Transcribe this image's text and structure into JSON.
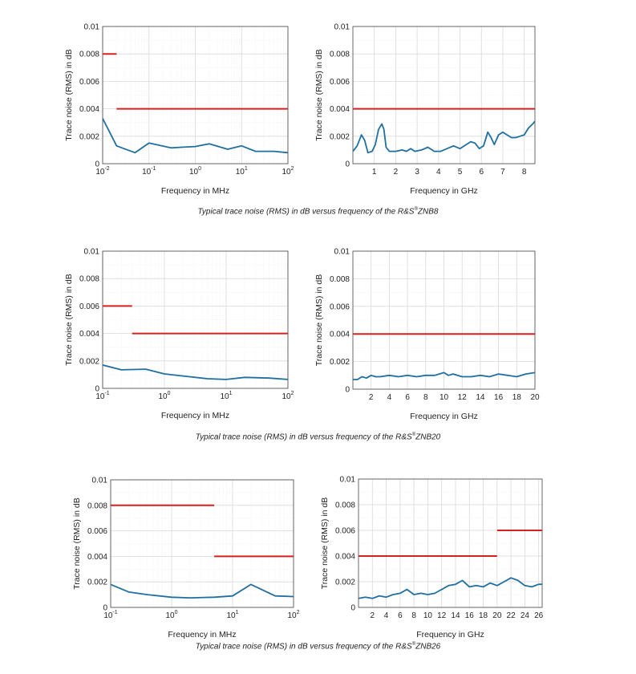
{
  "colors": {
    "limit": "#d62020",
    "measured": "#1f6fa0",
    "grid": "#d9d9d9",
    "axis": "#444444"
  },
  "captions": [
    {
      "prefix": "Typical trace noise (RMS) in dB versus frequency of the R&S",
      "mark": "®",
      "model": "ZNB8"
    },
    {
      "prefix": "Typical trace noise (RMS) in dB versus frequency of the R&S",
      "mark": "®",
      "model": "ZNB20"
    },
    {
      "prefix": "Typical trace noise (RMS) in dB versus frequency of the R&S",
      "mark": "®",
      "model": "ZNB26"
    }
  ],
  "chart_data": [
    {
      "id": "znb8-mhz",
      "type": "line",
      "xscale": "log",
      "xlabel": "Frequency in MHz",
      "ylabel": "Trace noise (RMS) in dB",
      "xlim": [
        0.01,
        100
      ],
      "ylim": [
        0,
        0.01
      ],
      "xticks": [
        0.01,
        0.1,
        1,
        10,
        100
      ],
      "xtick_labels": [
        {
          "base": "10",
          "exp": "-2"
        },
        {
          "base": "10",
          "exp": "-1"
        },
        {
          "base": "10",
          "exp": "0"
        },
        {
          "base": "10",
          "exp": "1"
        },
        {
          "base": "10",
          "exp": "2"
        }
      ],
      "yticks": [
        0,
        0.002,
        0.004,
        0.006,
        0.008,
        0.01
      ],
      "ytick_labels": [
        "0",
        "0.002",
        "0.004",
        "0.006",
        "0.008",
        "0.01"
      ],
      "series": [
        {
          "name": "limit",
          "color": "limit",
          "segments": [
            [
              [
                0.01,
                0.008
              ],
              [
                0.02,
                0.008
              ]
            ],
            [
              [
                0.02,
                0.004
              ],
              [
                100,
                0.004
              ]
            ]
          ]
        },
        {
          "name": "measured",
          "color": "measured",
          "segments": [
            [
              [
                0.01,
                0.0033
              ],
              [
                0.02,
                0.0013
              ],
              [
                0.05,
                0.0008
              ],
              [
                0.1,
                0.0015
              ],
              [
                0.3,
                0.00115
              ],
              [
                0.5,
                0.0012
              ],
              [
                1,
                0.00125
              ],
              [
                2,
                0.00145
              ],
              [
                5,
                0.00105
              ],
              [
                10,
                0.0013
              ],
              [
                20,
                0.0009
              ],
              [
                50,
                0.0009
              ],
              [
                100,
                0.0008
              ]
            ]
          ]
        }
      ]
    },
    {
      "id": "znb8-ghz",
      "type": "line",
      "xscale": "linear",
      "xlabel": "Frequency in GHz",
      "ylabel": "Trace noise (RMS) in dB",
      "xlim": [
        0,
        8.5
      ],
      "ylim": [
        0,
        0.01
      ],
      "xticks": [
        1,
        2,
        3,
        4,
        5,
        6,
        7,
        8
      ],
      "xtick_labels": [
        "1",
        "2",
        "3",
        "4",
        "5",
        "6",
        "7",
        "8"
      ],
      "yticks": [
        0,
        0.002,
        0.004,
        0.006,
        0.008,
        0.01
      ],
      "ytick_labels": [
        "0",
        "0.002",
        "0.004",
        "0.006",
        "0.008",
        "0.01"
      ],
      "series": [
        {
          "name": "limit",
          "color": "limit",
          "segments": [
            [
              [
                0,
                0.004
              ],
              [
                8.5,
                0.004
              ]
            ]
          ]
        },
        {
          "name": "measured",
          "color": "measured",
          "segments": [
            [
              [
                0,
                0.0009
              ],
              [
                0.2,
                0.0013
              ],
              [
                0.4,
                0.0021
              ],
              [
                0.55,
                0.0017
              ],
              [
                0.7,
                0.0008
              ],
              [
                0.9,
                0.0009
              ],
              [
                1.05,
                0.0014
              ],
              [
                1.2,
                0.0025
              ],
              [
                1.35,
                0.0029
              ],
              [
                1.45,
                0.0025
              ],
              [
                1.55,
                0.0012
              ],
              [
                1.7,
                0.0009
              ],
              [
                2.0,
                0.0009
              ],
              [
                2.3,
                0.001
              ],
              [
                2.5,
                0.0009
              ],
              [
                2.7,
                0.0011
              ],
              [
                2.9,
                0.0009
              ],
              [
                3.2,
                0.001
              ],
              [
                3.5,
                0.0012
              ],
              [
                3.8,
                0.0009
              ],
              [
                4.1,
                0.0009
              ],
              [
                4.4,
                0.0011
              ],
              [
                4.7,
                0.0013
              ],
              [
                5.0,
                0.0011
              ],
              [
                5.3,
                0.0014
              ],
              [
                5.5,
                0.0016
              ],
              [
                5.7,
                0.0015
              ],
              [
                5.9,
                0.0011
              ],
              [
                6.1,
                0.0013
              ],
              [
                6.3,
                0.0023
              ],
              [
                6.45,
                0.0019
              ],
              [
                6.6,
                0.0014
              ],
              [
                6.8,
                0.0021
              ],
              [
                7.0,
                0.0023
              ],
              [
                7.2,
                0.0021
              ],
              [
                7.4,
                0.0019
              ],
              [
                7.6,
                0.0019
              ],
              [
                7.8,
                0.002
              ],
              [
                8.0,
                0.0021
              ],
              [
                8.2,
                0.0026
              ],
              [
                8.4,
                0.0029
              ],
              [
                8.5,
                0.0031
              ]
            ]
          ]
        }
      ]
    },
    {
      "id": "znb20-mhz",
      "type": "line",
      "xscale": "log",
      "xlabel": "Frequency in MHz",
      "ylabel": "Trace noise (RMS) in dB",
      "xlim": [
        0.1,
        100
      ],
      "ylim": [
        0,
        0.01
      ],
      "xticks": [
        0.1,
        1,
        10,
        100
      ],
      "xtick_labels": [
        {
          "base": "10",
          "exp": "-1"
        },
        {
          "base": "10",
          "exp": "0"
        },
        {
          "base": "10",
          "exp": "1"
        },
        {
          "base": "10",
          "exp": "2"
        }
      ],
      "yticks": [
        0,
        0.002,
        0.004,
        0.006,
        0.008,
        0.01
      ],
      "ytick_labels": [
        "0",
        "0.002",
        "0.004",
        "0.006",
        "0.008",
        "0.01"
      ],
      "series": [
        {
          "name": "limit",
          "color": "limit",
          "segments": [
            [
              [
                0.1,
                0.006
              ],
              [
                0.3,
                0.006
              ]
            ],
            [
              [
                0.3,
                0.004
              ],
              [
                100,
                0.004
              ]
            ]
          ]
        },
        {
          "name": "measured",
          "color": "measured",
          "segments": [
            [
              [
                0.1,
                0.0017
              ],
              [
                0.2,
                0.00135
              ],
              [
                0.5,
                0.0014
              ],
              [
                1,
                0.00105
              ],
              [
                2,
                0.0009
              ],
              [
                5,
                0.0007
              ],
              [
                10,
                0.00065
              ],
              [
                20,
                0.0008
              ],
              [
                50,
                0.00075
              ],
              [
                100,
                0.00065
              ]
            ]
          ]
        }
      ]
    },
    {
      "id": "znb20-ghz",
      "type": "line",
      "xscale": "linear",
      "xlabel": "Frequency in GHz",
      "ylabel": "Trace noise (RMS) in dB",
      "xlim": [
        0,
        20
      ],
      "ylim": [
        0,
        0.01
      ],
      "xticks": [
        2,
        4,
        6,
        8,
        10,
        12,
        14,
        16,
        18,
        20
      ],
      "xtick_labels": [
        "2",
        "4",
        "6",
        "8",
        "10",
        "12",
        "14",
        "16",
        "18",
        "20"
      ],
      "yticks": [
        0,
        0.002,
        0.004,
        0.006,
        0.008,
        0.01
      ],
      "ytick_labels": [
        "0",
        "0.002",
        "0.004",
        "0.006",
        "0.008",
        "0.01"
      ],
      "series": [
        {
          "name": "limit",
          "color": "limit",
          "segments": [
            [
              [
                0,
                0.004
              ],
              [
                20,
                0.004
              ]
            ]
          ]
        },
        {
          "name": "measured",
          "color": "measured",
          "segments": [
            [
              [
                0,
                0.0007
              ],
              [
                0.5,
                0.0007
              ],
              [
                1,
                0.0009
              ],
              [
                1.5,
                0.0008
              ],
              [
                2,
                0.001
              ],
              [
                2.5,
                0.0009
              ],
              [
                3,
                0.0009
              ],
              [
                4,
                0.001
              ],
              [
                5,
                0.0009
              ],
              [
                6,
                0.001
              ],
              [
                7,
                0.0009
              ],
              [
                8,
                0.001
              ],
              [
                9,
                0.001
              ],
              [
                10,
                0.0012
              ],
              [
                10.5,
                0.001
              ],
              [
                11,
                0.0011
              ],
              [
                12,
                0.0009
              ],
              [
                13,
                0.0009
              ],
              [
                14,
                0.001
              ],
              [
                15,
                0.0009
              ],
              [
                16,
                0.0011
              ],
              [
                17,
                0.001
              ],
              [
                18,
                0.0009
              ],
              [
                19,
                0.0011
              ],
              [
                20,
                0.0012
              ]
            ]
          ]
        }
      ]
    },
    {
      "id": "znb26-mhz",
      "type": "line",
      "xscale": "log",
      "xlabel": "Frequency in MHz",
      "ylabel": "Trace noise (RMS) in dB",
      "xlim": [
        0.1,
        100
      ],
      "ylim": [
        0,
        0.01
      ],
      "xticks": [
        0.1,
        1,
        10,
        100
      ],
      "xtick_labels": [
        {
          "base": "10",
          "exp": "-1"
        },
        {
          "base": "10",
          "exp": "0"
        },
        {
          "base": "10",
          "exp": "1"
        },
        {
          "base": "10",
          "exp": "2"
        }
      ],
      "yticks": [
        0,
        0.002,
        0.004,
        0.006,
        0.008,
        0.01
      ],
      "ytick_labels": [
        "0",
        "0.002",
        "0.004",
        "0.006",
        "0.008",
        "0.01"
      ],
      "series": [
        {
          "name": "limit",
          "color": "limit",
          "segments": [
            [
              [
                0.1,
                0.008
              ],
              [
                5,
                0.008
              ]
            ],
            [
              [
                5,
                0.004
              ],
              [
                100,
                0.004
              ]
            ]
          ]
        },
        {
          "name": "measured",
          "color": "measured",
          "segments": [
            [
              [
                0.1,
                0.0018
              ],
              [
                0.2,
                0.0012
              ],
              [
                0.4,
                0.001
              ],
              [
                1,
                0.0008
              ],
              [
                2,
                0.00075
              ],
              [
                5,
                0.0008
              ],
              [
                10,
                0.0009
              ],
              [
                20,
                0.0018
              ],
              [
                50,
                0.0009
              ],
              [
                100,
                0.00085
              ]
            ]
          ]
        }
      ]
    },
    {
      "id": "znb26-ghz",
      "type": "line",
      "xscale": "linear",
      "xlabel": "Frequency in GHz",
      "ylabel": "Trace noise (RMS) in dB",
      "xlim": [
        0,
        26.5
      ],
      "ylim": [
        0,
        0.01
      ],
      "xticks": [
        2,
        4,
        6,
        8,
        10,
        12,
        14,
        16,
        18,
        20,
        22,
        24,
        26
      ],
      "xtick_labels": [
        "2",
        "4",
        "6",
        "8",
        "10",
        "12",
        "14",
        "16",
        "18",
        "20",
        "22",
        "24",
        "26"
      ],
      "yticks": [
        0,
        0.002,
        0.004,
        0.006,
        0.008,
        0.01
      ],
      "ytick_labels": [
        "0",
        "0.002",
        "0.004",
        "0.006",
        "0.008",
        "0.01"
      ],
      "series": [
        {
          "name": "limit",
          "color": "limit",
          "segments": [
            [
              [
                0,
                0.004
              ],
              [
                20,
                0.004
              ]
            ],
            [
              [
                20,
                0.006
              ],
              [
                26.5,
                0.006
              ]
            ]
          ]
        },
        {
          "name": "measured",
          "color": "measured",
          "segments": [
            [
              [
                0,
                0.0007
              ],
              [
                1,
                0.0008
              ],
              [
                2,
                0.0007
              ],
              [
                3,
                0.0009
              ],
              [
                4,
                0.0008
              ],
              [
                5,
                0.001
              ],
              [
                6,
                0.0011
              ],
              [
                7,
                0.0014
              ],
              [
                8,
                0.001
              ],
              [
                9,
                0.0011
              ],
              [
                10,
                0.001
              ],
              [
                11,
                0.0011
              ],
              [
                12,
                0.0014
              ],
              [
                13,
                0.0017
              ],
              [
                14,
                0.0018
              ],
              [
                15,
                0.0021
              ],
              [
                16,
                0.0016
              ],
              [
                17,
                0.0017
              ],
              [
                18,
                0.0016
              ],
              [
                19,
                0.0019
              ],
              [
                20,
                0.0017
              ],
              [
                21,
                0.002
              ],
              [
                22,
                0.0023
              ],
              [
                23,
                0.0021
              ],
              [
                24,
                0.0017
              ],
              [
                25,
                0.0016
              ],
              [
                26,
                0.0018
              ],
              [
                26.5,
                0.0018
              ]
            ]
          ]
        }
      ]
    }
  ]
}
